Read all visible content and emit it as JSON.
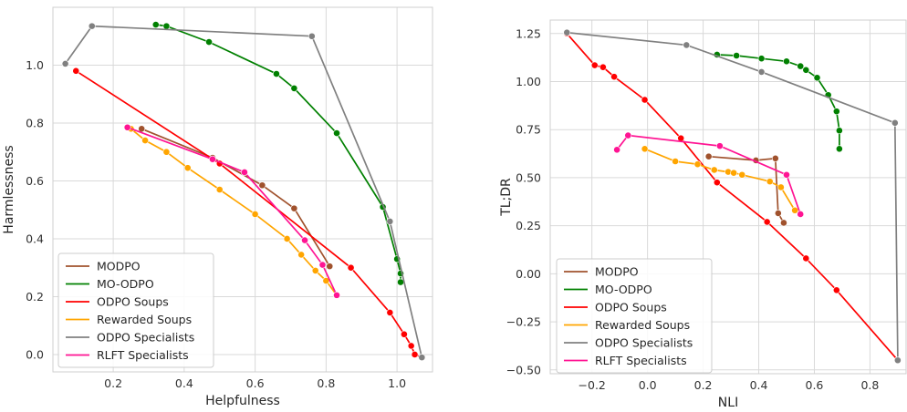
{
  "colors": {
    "MODPO": "#a0522d",
    "MO-ODPO": "#008000",
    "ODPO Soups": "#ff0000",
    "Rewarded Soups": "#ffa500",
    "ODPO Specialists": "#808080",
    "RLFT Specialists": "#ff1493"
  },
  "chart_data": [
    {
      "type": "line",
      "xlabel": "Helpfulness",
      "ylabel": "Harmlessness",
      "xlim": [
        0.03,
        1.1
      ],
      "ylim": [
        -0.06,
        1.2
      ],
      "xticks": [
        0.2,
        0.4,
        0.6,
        0.8,
        1.0
      ],
      "xtick_labels": [
        "0.2",
        "0.4",
        "0.6",
        "0.8",
        "1.0"
      ],
      "yticks": [
        0.0,
        0.2,
        0.4,
        0.6,
        0.8,
        1.0
      ],
      "ytick_labels": [
        "0.0",
        "0.2",
        "0.4",
        "0.6",
        "0.8",
        "1.0"
      ],
      "grid": true,
      "legend": "lower-left",
      "series": [
        {
          "name": "MODPO",
          "x": [
            0.28,
            0.48,
            0.62,
            0.71,
            0.81
          ],
          "y": [
            0.78,
            0.68,
            0.585,
            0.505,
            0.305
          ]
        },
        {
          "name": "MO-ODPO",
          "x": [
            0.32,
            0.35,
            0.47,
            0.66,
            0.71,
            0.83,
            0.96,
            1.0,
            1.01,
            1.01
          ],
          "y": [
            1.14,
            1.135,
            1.08,
            0.97,
            0.92,
            0.765,
            0.51,
            0.33,
            0.28,
            0.25
          ]
        },
        {
          "name": "ODPO Soups",
          "x": [
            0.095,
            0.5,
            0.87,
            0.98,
            1.02,
            1.04,
            1.05,
            1.07
          ],
          "y": [
            0.98,
            0.66,
            0.3,
            0.145,
            0.07,
            0.03,
            0.0,
            -0.01
          ]
        },
        {
          "name": "Rewarded Soups",
          "x": [
            0.25,
            0.29,
            0.35,
            0.41,
            0.5,
            0.6,
            0.69,
            0.73,
            0.77,
            0.8,
            0.83
          ],
          "y": [
            0.78,
            0.74,
            0.7,
            0.645,
            0.57,
            0.485,
            0.4,
            0.345,
            0.29,
            0.255,
            0.205
          ]
        },
        {
          "name": "ODPO Specialists",
          "x": [
            0.065,
            0.14,
            0.76,
            0.98,
            1.07
          ],
          "y": [
            1.005,
            1.135,
            1.1,
            0.46,
            -0.01
          ]
        },
        {
          "name": "RLFT Specialists",
          "x": [
            0.24,
            0.48,
            0.57,
            0.74,
            0.79,
            0.83
          ],
          "y": [
            0.785,
            0.675,
            0.63,
            0.395,
            0.31,
            0.205
          ]
        }
      ]
    },
    {
      "type": "line",
      "xlabel": "NLI",
      "ylabel": "TL;DR",
      "xlim": [
        -0.35,
        0.93
      ],
      "ylim": [
        -0.52,
        1.32
      ],
      "xticks": [
        -0.2,
        0.0,
        0.2,
        0.4,
        0.6,
        0.8
      ],
      "xtick_labels": [
        "−0.2",
        "0.0",
        "0.2",
        "0.4",
        "0.6",
        "0.8"
      ],
      "yticks": [
        -0.5,
        -0.25,
        0.0,
        0.25,
        0.5,
        0.75,
        1.0,
        1.25
      ],
      "ytick_labels": [
        "−0.50",
        "−0.25",
        "0.00",
        "0.25",
        "0.50",
        "0.75",
        "1.00",
        "1.25"
      ],
      "grid": true,
      "legend": "lower-left",
      "series": [
        {
          "name": "MODPO",
          "x": [
            0.22,
            0.39,
            0.46,
            0.47,
            0.49
          ],
          "y": [
            0.61,
            0.59,
            0.6,
            0.315,
            0.265
          ]
        },
        {
          "name": "MO-ODPO",
          "x": [
            0.25,
            0.32,
            0.41,
            0.5,
            0.55,
            0.57,
            0.61,
            0.65,
            0.68,
            0.69,
            0.69
          ],
          "y": [
            1.14,
            1.135,
            1.12,
            1.105,
            1.08,
            1.06,
            1.02,
            0.93,
            0.845,
            0.745,
            0.65
          ]
        },
        {
          "name": "ODPO Soups",
          "x": [
            -0.29,
            -0.19,
            -0.16,
            -0.12,
            -0.01,
            0.12,
            0.25,
            0.43,
            0.57,
            0.68,
            0.9
          ],
          "y": [
            1.25,
            1.085,
            1.075,
            1.025,
            0.905,
            0.705,
            0.475,
            0.27,
            0.08,
            -0.085,
            -0.45
          ]
        },
        {
          "name": "Rewarded Soups",
          "x": [
            -0.01,
            0.1,
            0.18,
            0.24,
            0.29,
            0.31,
            0.34,
            0.44,
            0.48,
            0.53
          ],
          "y": [
            0.65,
            0.585,
            0.57,
            0.54,
            0.53,
            0.525,
            0.515,
            0.48,
            0.45,
            0.33
          ]
        },
        {
          "name": "ODPO Specialists",
          "x": [
            -0.29,
            0.14,
            0.41,
            0.89,
            0.9
          ],
          "y": [
            1.255,
            1.19,
            1.05,
            0.785,
            -0.45
          ]
        },
        {
          "name": "RLFT Specialists",
          "x": [
            -0.11,
            -0.07,
            0.26,
            0.5,
            0.55
          ],
          "y": [
            0.645,
            0.72,
            0.665,
            0.515,
            0.31
          ]
        }
      ]
    }
  ]
}
